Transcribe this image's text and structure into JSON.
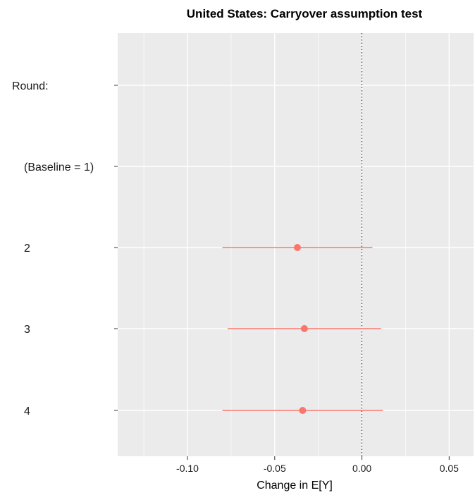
{
  "chart_data": {
    "type": "scatter",
    "subtype": "coefficient-plot",
    "title": "United States: Carryover assumption test",
    "xlabel": "Change in E[Y]",
    "ylabel": "",
    "xlim": [
      -0.14,
      0.064
    ],
    "x_ticks": [
      -0.1,
      -0.05,
      0.0,
      0.05
    ],
    "x_tick_labels": [
      "-0.10",
      "-0.05",
      "0.00",
      "0.05"
    ],
    "reference_line": {
      "x": 0.0,
      "style": "dotted"
    },
    "grid": true,
    "y_categories": [
      "Round:",
      "(Baseline = 1)",
      "2",
      "3",
      "4"
    ],
    "estimates": [
      {
        "label": "2",
        "estimate": -0.037,
        "lower": -0.08,
        "upper": 0.006
      },
      {
        "label": "3",
        "estimate": -0.033,
        "lower": -0.077,
        "upper": 0.011
      },
      {
        "label": "4",
        "estimate": -0.034,
        "lower": -0.08,
        "upper": 0.012
      }
    ],
    "colors": {
      "point": "#F8766D",
      "panel": "#EBEBEB",
      "grid": "#FFFFFF"
    }
  }
}
